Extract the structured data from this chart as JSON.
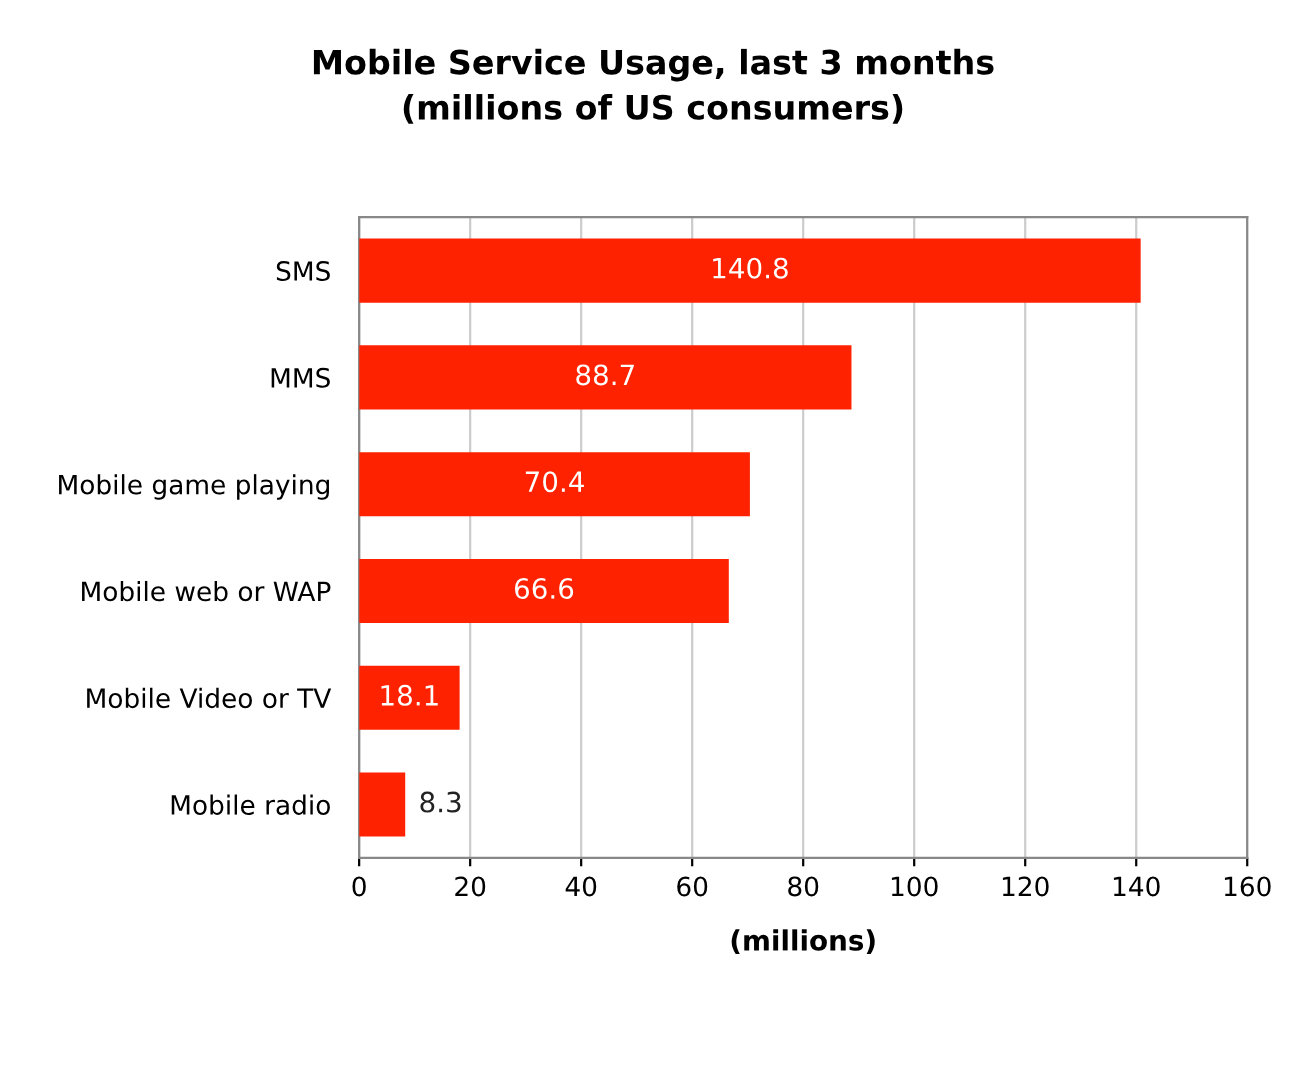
{
  "chart_data": {
    "type": "bar",
    "orientation": "horizontal",
    "title": "Mobile Service Usage, last 3 months\n(millions of US consumers)",
    "xlabel": "(millions)",
    "categories": [
      "SMS",
      "MMS",
      "Mobile game playing",
      "Mobile web or WAP",
      "Mobile Video or TV",
      "Mobile radio"
    ],
    "values": [
      140.8,
      88.7,
      70.4,
      66.6,
      18.1,
      8.3
    ],
    "color": "#ff2200",
    "data_labels": true,
    "grid": "x",
    "legend": false,
    "xlim": [
      0,
      160
    ],
    "xticks": [
      0,
      20,
      40,
      60,
      80,
      100,
      120,
      140,
      160
    ]
  }
}
